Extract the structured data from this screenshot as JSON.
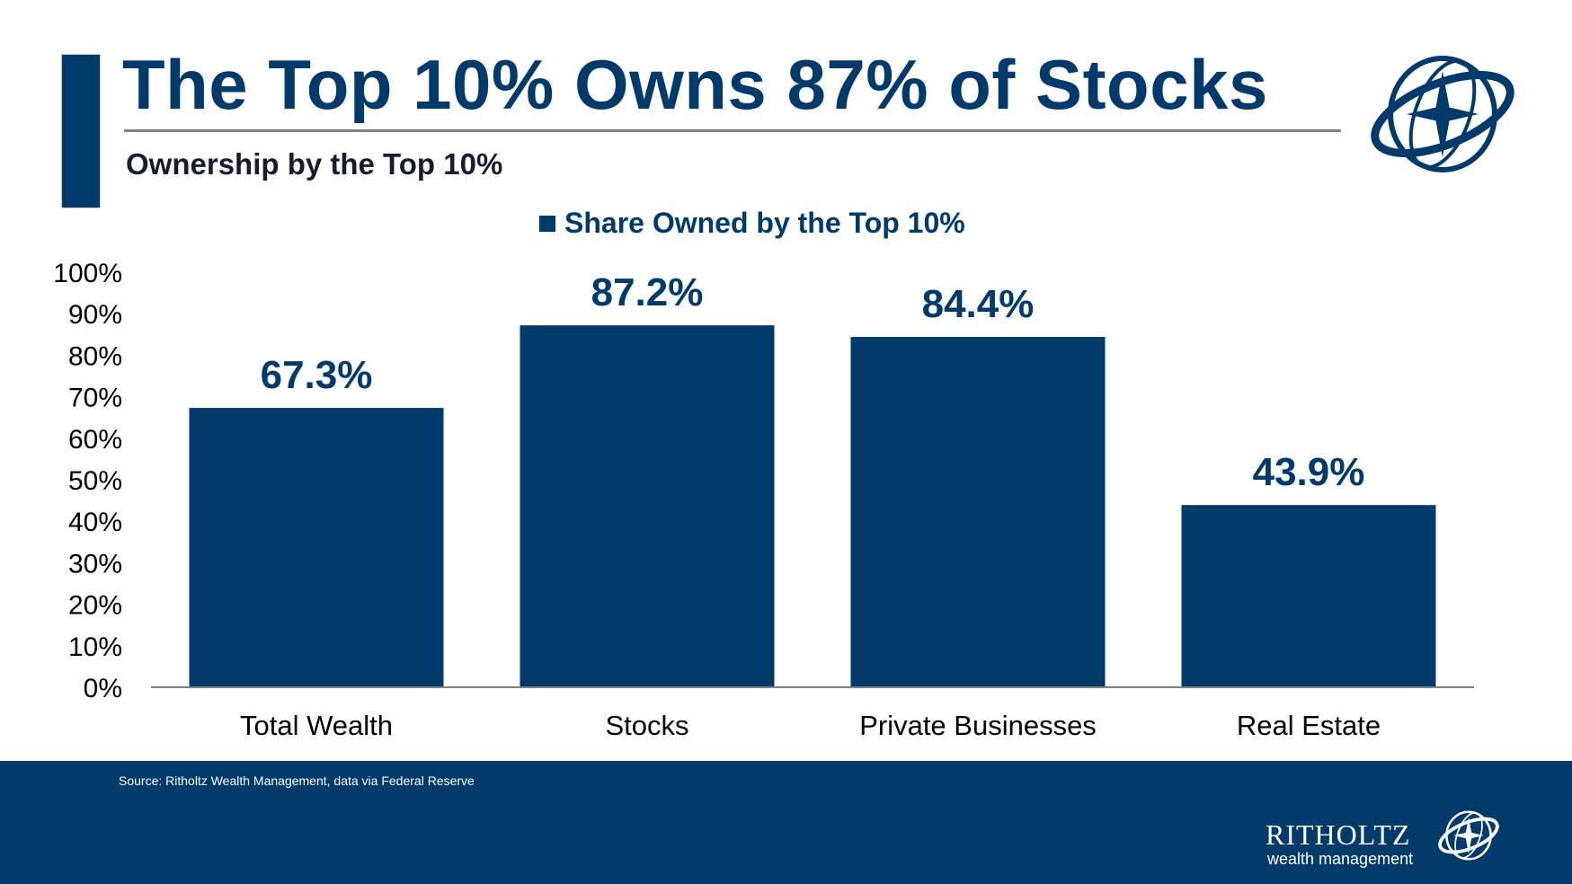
{
  "header": {
    "title": "The Top 10% Owns 87% of Stocks",
    "subtitle": "Ownership by the Top 10%"
  },
  "colors": {
    "brand": "#003a6b",
    "axis": "#7f7f7f",
    "text": "#000000"
  },
  "chart_data": {
    "type": "bar",
    "title": "Ownership by the Top 10%",
    "xlabel": "",
    "ylabel": "",
    "categories": [
      "Total Wealth",
      "Stocks",
      "Private Businesses",
      "Real Estate"
    ],
    "series": [
      {
        "name": "Share Owned by the Top 10%",
        "values": [
          67.3,
          87.2,
          84.4,
          43.9
        ]
      }
    ],
    "data_labels": [
      "67.3%",
      "87.2%",
      "84.4%",
      "43.9%"
    ],
    "ylim": [
      0,
      100
    ],
    "yticks": [
      0,
      10,
      20,
      30,
      40,
      50,
      60,
      70,
      80,
      90,
      100
    ],
    "ytick_labels": [
      "0%",
      "10%",
      "20%",
      "30%",
      "40%",
      "50%",
      "60%",
      "70%",
      "80%",
      "90%",
      "100%"
    ],
    "grid": false,
    "legend_position": "top-center"
  },
  "footer": {
    "source": "Source: Ritholtz Wealth Management, data via Federal Reserve",
    "brand_name": "RITHOLTZ",
    "brand_tagline": "wealth management",
    "logo_icon": "compass-globe-icon"
  }
}
